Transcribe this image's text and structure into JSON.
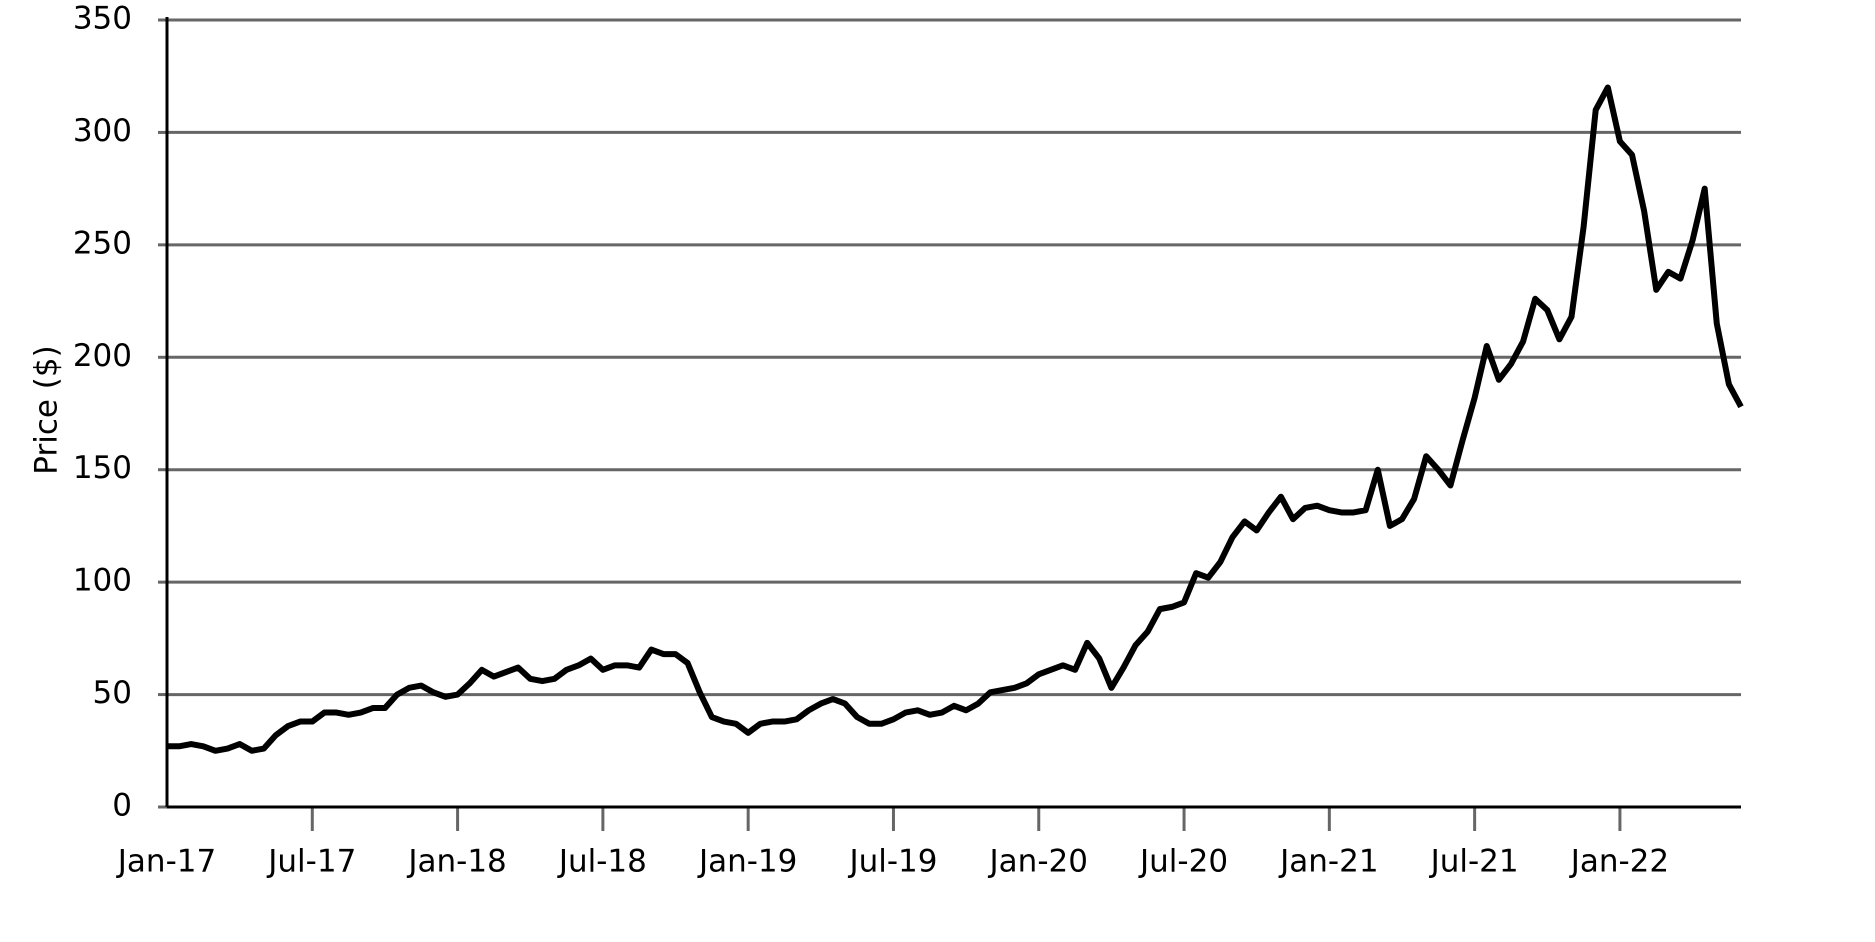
{
  "chart_data": {
    "type": "line",
    "y_label": "Price ($)",
    "categories": [
      "Jan-17",
      null,
      null,
      null,
      null,
      null,
      null,
      null,
      null,
      null,
      null,
      null,
      "Jul-17",
      null,
      null,
      null,
      null,
      null,
      null,
      null,
      null,
      null,
      null,
      null,
      "Jan-18",
      null,
      null,
      null,
      null,
      null,
      null,
      null,
      null,
      null,
      null,
      null,
      "Jul-18",
      null,
      null,
      null,
      null,
      null,
      null,
      null,
      null,
      null,
      null,
      null,
      "Jan-19",
      null,
      null,
      null,
      null,
      null,
      null,
      null,
      null,
      null,
      null,
      null,
      "Jul-19",
      null,
      null,
      null,
      null,
      null,
      null,
      null,
      null,
      null,
      null,
      null,
      "Jan-20",
      null,
      null,
      null,
      null,
      null,
      null,
      null,
      null,
      null,
      null,
      null,
      "Jul-20",
      null,
      null,
      null,
      null,
      null,
      null,
      null,
      null,
      null,
      null,
      null,
      "Jan-21",
      null,
      null,
      null,
      null,
      null,
      null,
      null,
      null,
      null,
      null,
      null,
      "Jul-21",
      null,
      null,
      null,
      null,
      null,
      null,
      null,
      null,
      null,
      null,
      null,
      "Jan-22",
      null,
      null,
      null,
      null,
      null,
      null,
      null,
      null,
      null,
      null
    ],
    "values": [
      27,
      27,
      28,
      27,
      25,
      26,
      28,
      25,
      26,
      32,
      36,
      38,
      38,
      42,
      42,
      41,
      42,
      44,
      44,
      50,
      53,
      54,
      51,
      49,
      50,
      55,
      61,
      58,
      60,
      62,
      57,
      56,
      57,
      61,
      63,
      66,
      61,
      63,
      63,
      62,
      70,
      68,
      68,
      64,
      51,
      40,
      38,
      37,
      33,
      37,
      38,
      38,
      39,
      43,
      46,
      48,
      46,
      40,
      37,
      37,
      39,
      42,
      43,
      41,
      42,
      45,
      43,
      46,
      51,
      52,
      53,
      55,
      59,
      61,
      63,
      61,
      73,
      66,
      53,
      62,
      72,
      78,
      88,
      89,
      91,
      104,
      102,
      109,
      120,
      127,
      123,
      131,
      138,
      128,
      133,
      134,
      132,
      131,
      131,
      132,
      150,
      125,
      128,
      137,
      156,
      150,
      143,
      163,
      182,
      205,
      190,
      197,
      207,
      226,
      221,
      208,
      218,
      258,
      310,
      320,
      296,
      290,
      265,
      230,
      238,
      235,
      252,
      275,
      215,
      188,
      178
    ],
    "color": "#000000",
    "ylim": [
      0,
      350
    ],
    "yticks": [
      0,
      50,
      100,
      150,
      200,
      250,
      300,
      350
    ],
    "grid": true
  }
}
